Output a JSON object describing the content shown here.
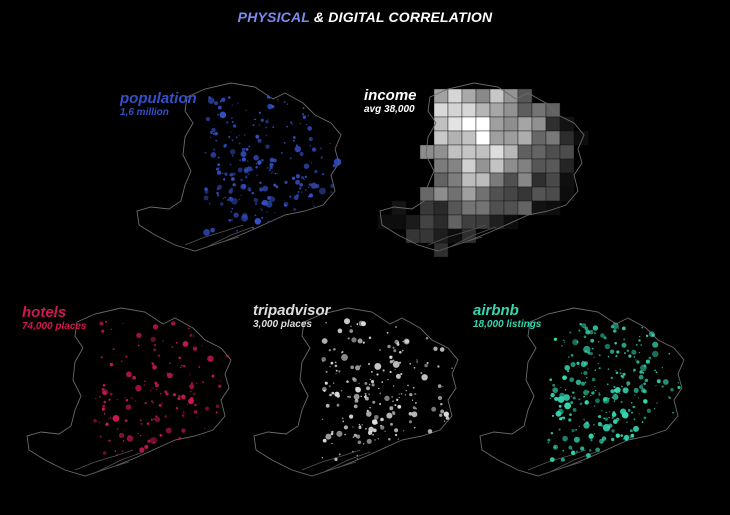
{
  "title": {
    "accent": "PHYSICAL",
    "rest": "& DIGITAL CORRELATION",
    "accent_color": "#7b8cf0"
  },
  "panels": [
    {
      "id": "population",
      "label": "population",
      "sub": "1,6 million",
      "color": "#3550c8",
      "type": "dots",
      "density": 0.55
    },
    {
      "id": "income",
      "label": "income",
      "sub": "avg 38,000",
      "color": "#ffffff",
      "type": "choropleth"
    },
    {
      "id": "hotels",
      "label": "hotels",
      "sub": "74,000 places",
      "color": "#d01850",
      "type": "dots",
      "density": 0.35
    },
    {
      "id": "tripadvisor",
      "label": "tripadvisor",
      "sub": "3,000 places",
      "color": "#dddddd",
      "type": "dots",
      "density": 0.5
    },
    {
      "id": "airbnb",
      "label": "airbnb",
      "sub": "18,000 listings",
      "color": "#35d6b0",
      "type": "dots",
      "density": 0.65
    }
  ]
}
